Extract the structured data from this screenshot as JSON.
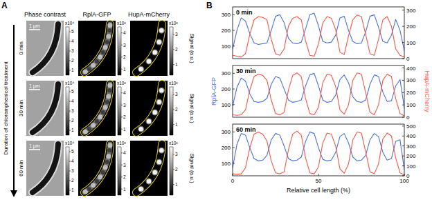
{
  "panel_a": {
    "label": "A",
    "columns": [
      "Phase contrast",
      "RplA-GFP",
      "HupA-mCherry"
    ],
    "rows": [
      "0 min",
      "30 min",
      "60 min"
    ],
    "scale_bar": "1 µm",
    "arrow_label": "Duration of chloramphenicol treatment",
    "colorbar_label": "Signal (a.u.)",
    "colorbars": [
      {
        "exponent_label": "x10⁴",
        "range": [
          0.5,
          5.5
        ],
        "ticks": [
          1,
          2,
          3,
          4,
          5
        ]
      },
      {
        "exponent_label": "x10²",
        "range": [
          0.5,
          4.5
        ],
        "ticks": [
          1,
          2,
          3,
          4
        ]
      },
      {
        "exponent_label": "x10²",
        "range": [
          0.3,
          3.5
        ],
        "ticks": [
          1,
          2,
          3
        ]
      }
    ]
  },
  "panel_b_label": "B",
  "chart_data": [
    {
      "type": "line",
      "annotation": "0 min",
      "x": [
        0,
        2.5,
        5,
        7.5,
        10,
        12.5,
        15,
        17.5,
        20,
        22.5,
        25,
        27.5,
        30,
        32.5,
        35,
        37.5,
        40,
        42.5,
        45,
        47.5,
        50,
        52.5,
        55,
        57.5,
        60,
        62.5,
        65,
        67.5,
        70,
        72.5,
        75,
        77.5,
        80,
        82.5,
        85,
        87.5,
        90,
        92.5,
        95,
        97.5,
        100
      ],
      "xlim": [
        0,
        100
      ],
      "xticks": [],
      "ylim": [
        20,
        350
      ],
      "yticks": [
        100,
        200,
        300
      ],
      "y2lim": [
        0,
        320
      ],
      "y2ticks": [
        0,
        100,
        200,
        300
      ],
      "series": [
        {
          "color": "#4a72d8",
          "axis": "y",
          "values": [
            80,
            200,
            280,
            260,
            180,
            120,
            110,
            115,
            120,
            200,
            290,
            300,
            250,
            150,
            120,
            115,
            125,
            210,
            300,
            310,
            230,
            130,
            120,
            125,
            170,
            280,
            290,
            200,
            130,
            115,
            120,
            190,
            290,
            300,
            220,
            130,
            120,
            170,
            270,
            200,
            70
          ]
        },
        {
          "color": "#f2584a",
          "axis": "y2",
          "values": [
            20,
            15,
            10,
            30,
            150,
            240,
            260,
            255,
            240,
            120,
            30,
            20,
            60,
            200,
            250,
            260,
            240,
            110,
            20,
            15,
            90,
            220,
            260,
            250,
            180,
            40,
            25,
            140,
            240,
            270,
            260,
            150,
            30,
            20,
            120,
            240,
            260,
            200,
            60,
            20,
            10
          ]
        }
      ]
    },
    {
      "type": "line",
      "annotation": "30 min",
      "y_label": "RplA-GFP",
      "y2_label": "HupA-mCherry",
      "x": [
        0,
        2.5,
        5,
        7.5,
        10,
        12.5,
        15,
        17.5,
        20,
        22.5,
        25,
        27.5,
        30,
        32.5,
        35,
        37.5,
        40,
        42.5,
        45,
        47.5,
        50,
        52.5,
        55,
        57.5,
        60,
        62.5,
        65,
        67.5,
        70,
        72.5,
        75,
        77.5,
        80,
        82.5,
        85,
        87.5,
        90,
        92.5,
        95,
        97.5,
        100
      ],
      "xlim": [
        0,
        100
      ],
      "xticks": [],
      "ylim": [
        20,
        350
      ],
      "yticks": [
        100,
        200,
        300
      ],
      "y2lim": [
        0,
        420
      ],
      "y2ticks": [
        0,
        100,
        200,
        300,
        400
      ],
      "series": [
        {
          "color": "#4a72d8",
          "axis": "y",
          "values": [
            90,
            210,
            270,
            250,
            170,
            120,
            115,
            120,
            140,
            230,
            280,
            270,
            200,
            130,
            115,
            120,
            130,
            220,
            290,
            300,
            220,
            130,
            115,
            120,
            160,
            260,
            290,
            240,
            150,
            120,
            115,
            130,
            230,
            290,
            280,
            180,
            120,
            125,
            220,
            260,
            80
          ]
        },
        {
          "color": "#f2584a",
          "axis": "y2",
          "values": [
            20,
            15,
            20,
            60,
            220,
            330,
            350,
            340,
            300,
            140,
            30,
            20,
            40,
            220,
            340,
            360,
            330,
            150,
            30,
            20,
            80,
            280,
            350,
            340,
            250,
            60,
            25,
            100,
            300,
            360,
            350,
            200,
            40,
            20,
            100,
            300,
            350,
            330,
            150,
            30,
            10
          ]
        }
      ]
    },
    {
      "type": "line",
      "annotation": "60 min",
      "x_label": "Relative cell length (%)",
      "x": [
        0,
        2.5,
        5,
        7.5,
        10,
        12.5,
        15,
        17.5,
        20,
        22.5,
        25,
        27.5,
        30,
        32.5,
        35,
        37.5,
        40,
        42.5,
        45,
        47.5,
        50,
        52.5,
        55,
        57.5,
        60,
        62.5,
        65,
        67.5,
        70,
        72.5,
        75,
        77.5,
        80,
        82.5,
        85,
        87.5,
        90,
        92.5,
        95,
        97.5,
        100
      ],
      "xlim": [
        0,
        100
      ],
      "xticks": [
        0,
        50,
        100
      ],
      "ylim": [
        20,
        350
      ],
      "yticks": [
        100,
        200,
        300
      ],
      "y2lim": [
        0,
        520
      ],
      "y2ticks": [
        0,
        100,
        200,
        300,
        400,
        500
      ],
      "series": [
        {
          "color": "#4a72d8",
          "axis": "y",
          "values": [
            70,
            220,
            290,
            280,
            200,
            130,
            115,
            120,
            150,
            250,
            290,
            280,
            210,
            130,
            115,
            120,
            140,
            240,
            300,
            290,
            200,
            125,
            115,
            120,
            170,
            270,
            290,
            230,
            140,
            115,
            120,
            150,
            250,
            290,
            270,
            170,
            120,
            130,
            240,
            250,
            60
          ]
        },
        {
          "color": "#f2584a",
          "axis": "y2",
          "values": [
            20,
            15,
            20,
            80,
            280,
            420,
            440,
            420,
            350,
            150,
            30,
            20,
            40,
            260,
            420,
            450,
            410,
            180,
            30,
            20,
            90,
            330,
            430,
            420,
            300,
            70,
            25,
            120,
            360,
            440,
            430,
            240,
            40,
            20,
            120,
            370,
            430,
            400,
            180,
            30,
            10
          ]
        }
      ]
    }
  ]
}
